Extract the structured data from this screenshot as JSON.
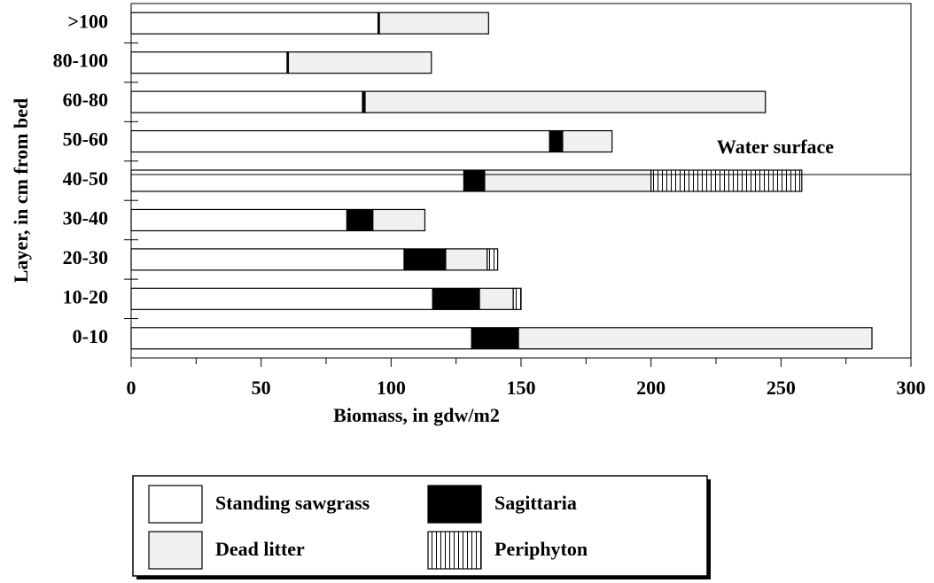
{
  "chart_data": {
    "type": "stacked-bar-horizontal",
    "x_label": "Biomass, in gdw/m2",
    "y_label": "Layer, in cm from bed",
    "annotation": "Water surface",
    "categories": [
      "0-10",
      "10-20",
      "20-30",
      "30-40",
      "40-50",
      "50-60",
      "60-80",
      "80-100",
      ">100"
    ],
    "series": [
      {
        "name": "Standing sawgrass",
        "color": "#ffffff",
        "values": [
          131,
          116,
          105,
          83,
          128,
          161,
          89,
          60,
          95
        ]
      },
      {
        "name": "Sagittaria",
        "color": "#000000",
        "values": [
          18,
          18,
          16,
          10,
          8,
          5,
          1,
          0.5,
          0.5
        ]
      },
      {
        "name": "Dead litter",
        "color": "#f0f0f0",
        "values": [
          136,
          13,
          16,
          20,
          64,
          19,
          154,
          55,
          42
        ]
      },
      {
        "name": "Periphyton",
        "color": "#000000",
        "hatch": "vertical",
        "values": [
          0,
          3,
          4,
          0,
          58,
          0,
          0,
          0,
          0
        ]
      }
    ],
    "xlim": [
      0,
      300
    ],
    "xticks": [
      0,
      50,
      100,
      150,
      200,
      250,
      300
    ]
  }
}
